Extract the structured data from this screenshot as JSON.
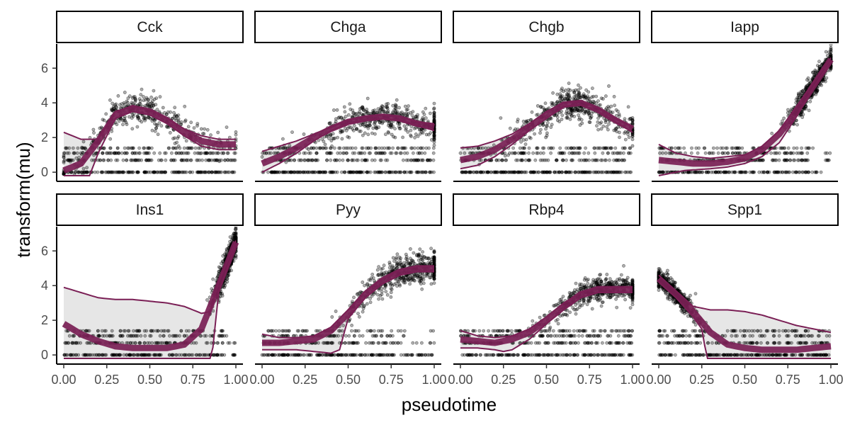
{
  "chart_data": {
    "type": "scatter",
    "layout": "facet-grid 2x4",
    "xlabel": "pseudotime",
    "ylabel": "transform(mu)",
    "xlim": [
      0,
      1
    ],
    "ylim": [
      -0.2,
      7.4
    ],
    "x_ticks": [
      0,
      0.25,
      0.5,
      0.75,
      1
    ],
    "x_tick_labels": [
      "0.00",
      "0.25",
      "0.50",
      "0.75",
      "1.00"
    ],
    "y_ticks": [
      0,
      2,
      4,
      6
    ],
    "y_tick_labels": [
      "0",
      "2",
      "4",
      "6"
    ],
    "grid": false,
    "colors": {
      "points": "#000000",
      "fit": "#7a1f55",
      "band": "#e6e6e6",
      "strip_border": "#000000"
    },
    "facets": [
      {
        "name": "Cck",
        "fit": [
          [
            0,
            0.1
          ],
          [
            0.1,
            0.5
          ],
          [
            0.2,
            1.8
          ],
          [
            0.3,
            3.3
          ],
          [
            0.4,
            3.7
          ],
          [
            0.5,
            3.5
          ],
          [
            0.6,
            3.0
          ],
          [
            0.7,
            2.3
          ],
          [
            0.8,
            1.8
          ],
          [
            0.9,
            1.6
          ],
          [
            1.0,
            1.6
          ]
        ],
        "upper": [
          [
            0,
            2.3
          ],
          [
            0.1,
            1.9
          ],
          [
            0.2,
            1.9
          ],
          [
            0.3,
            3.5
          ],
          [
            0.4,
            3.8
          ],
          [
            0.5,
            3.6
          ],
          [
            0.6,
            3.1
          ],
          [
            0.7,
            2.5
          ],
          [
            0.8,
            2.1
          ],
          [
            0.9,
            1.9
          ],
          [
            1.0,
            1.9
          ]
        ],
        "lower": [
          [
            0,
            -0.2
          ],
          [
            0.1,
            -0.2
          ],
          [
            0.15,
            -0.2
          ],
          [
            0.2,
            1.1
          ],
          [
            0.3,
            3.1
          ],
          [
            0.4,
            3.5
          ],
          [
            0.5,
            3.3
          ],
          [
            0.6,
            2.8
          ],
          [
            0.7,
            2.1
          ],
          [
            0.8,
            1.5
          ],
          [
            0.9,
            1.3
          ],
          [
            1.0,
            1.3
          ]
        ],
        "center": [
          0.38,
          3.2
        ],
        "spread": [
          0.28,
          1.4
        ]
      },
      {
        "name": "Chga",
        "fit": [
          [
            0,
            0.5
          ],
          [
            0.1,
            0.9
          ],
          [
            0.2,
            1.4
          ],
          [
            0.3,
            2.0
          ],
          [
            0.4,
            2.5
          ],
          [
            0.5,
            2.9
          ],
          [
            0.6,
            3.1
          ],
          [
            0.7,
            3.2
          ],
          [
            0.8,
            3.1
          ],
          [
            0.9,
            2.8
          ],
          [
            1.0,
            2.6
          ]
        ],
        "upper": [
          [
            0,
            1.2
          ],
          [
            0.1,
            1.5
          ],
          [
            0.2,
            1.8
          ],
          [
            0.3,
            2.2
          ],
          [
            0.4,
            2.6
          ],
          [
            0.5,
            3.0
          ],
          [
            0.6,
            3.2
          ],
          [
            0.7,
            3.3
          ],
          [
            0.8,
            3.2
          ],
          [
            0.9,
            2.9
          ],
          [
            1.0,
            2.8
          ]
        ],
        "lower": [
          [
            0,
            0.0
          ],
          [
            0.1,
            0.5
          ],
          [
            0.2,
            1.1
          ],
          [
            0.3,
            1.8
          ],
          [
            0.4,
            2.4
          ],
          [
            0.5,
            2.8
          ],
          [
            0.6,
            3.0
          ],
          [
            0.7,
            3.1
          ],
          [
            0.8,
            3.0
          ],
          [
            0.9,
            2.7
          ],
          [
            1.0,
            2.4
          ]
        ],
        "center": [
          0.72,
          3.0
        ],
        "spread": [
          0.26,
          1.2
        ]
      },
      {
        "name": "Chgb",
        "fit": [
          [
            0,
            0.7
          ],
          [
            0.1,
            0.9
          ],
          [
            0.2,
            1.3
          ],
          [
            0.3,
            1.9
          ],
          [
            0.4,
            2.6
          ],
          [
            0.5,
            3.3
          ],
          [
            0.6,
            3.9
          ],
          [
            0.7,
            4.0
          ],
          [
            0.8,
            3.6
          ],
          [
            0.9,
            3.0
          ],
          [
            1.0,
            2.5
          ]
        ],
        "upper": [
          [
            0,
            1.4
          ],
          [
            0.1,
            1.5
          ],
          [
            0.2,
            1.8
          ],
          [
            0.3,
            2.2
          ],
          [
            0.4,
            2.8
          ],
          [
            0.5,
            3.5
          ],
          [
            0.6,
            4.0
          ],
          [
            0.7,
            4.1
          ],
          [
            0.8,
            3.7
          ],
          [
            0.9,
            3.1
          ],
          [
            1.0,
            2.6
          ]
        ],
        "lower": [
          [
            0,
            0.2
          ],
          [
            0.1,
            0.4
          ],
          [
            0.2,
            0.9
          ],
          [
            0.3,
            1.6
          ],
          [
            0.4,
            2.4
          ],
          [
            0.5,
            3.1
          ],
          [
            0.6,
            3.8
          ],
          [
            0.7,
            3.9
          ],
          [
            0.8,
            3.5
          ],
          [
            0.9,
            2.9
          ],
          [
            1.0,
            2.3
          ]
        ],
        "center": [
          0.67,
          3.6
        ],
        "spread": [
          0.22,
          1.3
        ]
      },
      {
        "name": "Iapp",
        "fit": [
          [
            0,
            0.7
          ],
          [
            0.1,
            0.6
          ],
          [
            0.2,
            0.5
          ],
          [
            0.3,
            0.5
          ],
          [
            0.4,
            0.6
          ],
          [
            0.5,
            0.8
          ],
          [
            0.6,
            1.3
          ],
          [
            0.7,
            2.2
          ],
          [
            0.8,
            3.5
          ],
          [
            0.9,
            5.0
          ],
          [
            1.0,
            6.5
          ]
        ],
        "upper": [
          [
            0,
            1.6
          ],
          [
            0.1,
            1.1
          ],
          [
            0.2,
            0.9
          ],
          [
            0.3,
            0.8
          ],
          [
            0.4,
            0.9
          ],
          [
            0.5,
            1.0
          ],
          [
            0.6,
            1.5
          ],
          [
            0.7,
            2.4
          ],
          [
            0.8,
            3.8
          ],
          [
            0.9,
            5.2
          ],
          [
            1.0,
            6.6
          ]
        ],
        "lower": [
          [
            0,
            -0.2
          ],
          [
            0.15,
            0.1
          ],
          [
            0.3,
            0.2
          ],
          [
            0.4,
            0.3
          ],
          [
            0.5,
            0.5
          ],
          [
            0.6,
            0.9
          ],
          [
            0.7,
            1.7
          ],
          [
            0.8,
            3.2
          ],
          [
            0.9,
            4.9
          ],
          [
            1.0,
            6.4
          ]
        ],
        "center": [
          0.9,
          5.0
        ],
        "spread": [
          0.08,
          1.0
        ]
      },
      {
        "name": "Ins1",
        "fit": [
          [
            0,
            1.8
          ],
          [
            0.1,
            1.2
          ],
          [
            0.2,
            0.8
          ],
          [
            0.3,
            0.5
          ],
          [
            0.4,
            0.4
          ],
          [
            0.5,
            0.4
          ],
          [
            0.6,
            0.4
          ],
          [
            0.7,
            0.6
          ],
          [
            0.8,
            1.5
          ],
          [
            0.9,
            4.0
          ],
          [
            1.0,
            6.5
          ]
        ],
        "upper": [
          [
            0,
            3.9
          ],
          [
            0.1,
            3.6
          ],
          [
            0.2,
            3.3
          ],
          [
            0.3,
            3.2
          ],
          [
            0.4,
            3.2
          ],
          [
            0.5,
            3.1
          ],
          [
            0.6,
            3.0
          ],
          [
            0.7,
            2.8
          ],
          [
            0.8,
            2.4
          ],
          [
            0.85,
            2.5
          ],
          [
            0.9,
            4.2
          ],
          [
            1.0,
            6.6
          ]
        ],
        "lower": [
          [
            0,
            -0.2
          ],
          [
            0.4,
            -0.2
          ],
          [
            0.6,
            -0.2
          ],
          [
            0.8,
            -0.2
          ],
          [
            0.86,
            -0.2
          ],
          [
            0.9,
            3.6
          ],
          [
            1.0,
            6.4
          ]
        ],
        "center": [
          0.95,
          5.2
        ],
        "spread": [
          0.04,
          1.2
        ]
      },
      {
        "name": "Pyy",
        "fit": [
          [
            0,
            0.7
          ],
          [
            0.1,
            0.7
          ],
          [
            0.2,
            0.8
          ],
          [
            0.3,
            0.9
          ],
          [
            0.4,
            1.4
          ],
          [
            0.5,
            2.4
          ],
          [
            0.6,
            3.5
          ],
          [
            0.7,
            4.3
          ],
          [
            0.8,
            4.8
          ],
          [
            0.9,
            5.0
          ],
          [
            1.0,
            5.0
          ]
        ],
        "upper": [
          [
            0,
            1.2
          ],
          [
            0.1,
            1.0
          ],
          [
            0.2,
            1.0
          ],
          [
            0.3,
            1.1
          ],
          [
            0.4,
            1.6
          ],
          [
            0.5,
            2.6
          ],
          [
            0.6,
            3.7
          ],
          [
            0.7,
            4.4
          ],
          [
            0.8,
            4.9
          ],
          [
            0.9,
            5.1
          ],
          [
            1.0,
            5.1
          ]
        ],
        "lower": [
          [
            0,
            0.3
          ],
          [
            0.1,
            0.3
          ],
          [
            0.2,
            0.3
          ],
          [
            0.3,
            0.2
          ],
          [
            0.4,
            0.1
          ],
          [
            0.45,
            0.3
          ],
          [
            0.5,
            2.1
          ],
          [
            0.6,
            3.3
          ],
          [
            0.7,
            4.1
          ],
          [
            0.8,
            4.6
          ],
          [
            0.9,
            4.8
          ],
          [
            1.0,
            4.8
          ]
        ],
        "center": [
          0.82,
          4.5
        ],
        "spread": [
          0.16,
          1.3
        ]
      },
      {
        "name": "Rbp4",
        "fit": [
          [
            0,
            0.9
          ],
          [
            0.1,
            0.8
          ],
          [
            0.2,
            0.7
          ],
          [
            0.3,
            0.9
          ],
          [
            0.4,
            1.3
          ],
          [
            0.5,
            2.0
          ],
          [
            0.6,
            2.8
          ],
          [
            0.7,
            3.5
          ],
          [
            0.8,
            3.8
          ],
          [
            0.9,
            3.8
          ],
          [
            1.0,
            3.8
          ]
        ],
        "upper": [
          [
            0,
            1.4
          ],
          [
            0.1,
            1.1
          ],
          [
            0.2,
            1.0
          ],
          [
            0.3,
            1.1
          ],
          [
            0.4,
            1.5
          ],
          [
            0.5,
            2.2
          ],
          [
            0.6,
            3.0
          ],
          [
            0.7,
            3.6
          ],
          [
            0.8,
            3.9
          ],
          [
            0.9,
            3.9
          ],
          [
            1.0,
            3.9
          ]
        ],
        "lower": [
          [
            0,
            0.4
          ],
          [
            0.1,
            0.4
          ],
          [
            0.2,
            0.3
          ],
          [
            0.25,
            0.2
          ],
          [
            0.3,
            0.3
          ],
          [
            0.4,
            0.9
          ],
          [
            0.5,
            1.8
          ],
          [
            0.6,
            2.6
          ],
          [
            0.7,
            3.3
          ],
          [
            0.8,
            3.6
          ],
          [
            0.9,
            3.6
          ],
          [
            1.0,
            3.6
          ]
        ],
        "center": [
          0.8,
          3.6
        ],
        "spread": [
          0.17,
          1.0
        ]
      },
      {
        "name": "Spp1",
        "fit": [
          [
            0,
            4.4
          ],
          [
            0.1,
            3.5
          ],
          [
            0.2,
            2.5
          ],
          [
            0.3,
            1.3
          ],
          [
            0.4,
            0.6
          ],
          [
            0.5,
            0.4
          ],
          [
            0.6,
            0.3
          ],
          [
            0.7,
            0.3
          ],
          [
            0.8,
            0.3
          ],
          [
            0.9,
            0.4
          ],
          [
            1.0,
            0.5
          ]
        ],
        "upper": [
          [
            0,
            4.6
          ],
          [
            0.1,
            3.7
          ],
          [
            0.2,
            2.8
          ],
          [
            0.3,
            2.6
          ],
          [
            0.4,
            2.6
          ],
          [
            0.5,
            2.5
          ],
          [
            0.6,
            2.3
          ],
          [
            0.7,
            2.0
          ],
          [
            0.8,
            1.7
          ],
          [
            0.9,
            1.5
          ],
          [
            1.0,
            1.3
          ]
        ],
        "lower": [
          [
            0,
            4.2
          ],
          [
            0.1,
            3.3
          ],
          [
            0.2,
            2.2
          ],
          [
            0.25,
            1.5
          ],
          [
            0.28,
            -0.2
          ],
          [
            0.5,
            -0.2
          ],
          [
            0.8,
            -0.2
          ],
          [
            1.0,
            -0.2
          ]
        ],
        "center": [
          0.08,
          3.9
        ],
        "spread": [
          0.07,
          0.8
        ]
      }
    ]
  }
}
